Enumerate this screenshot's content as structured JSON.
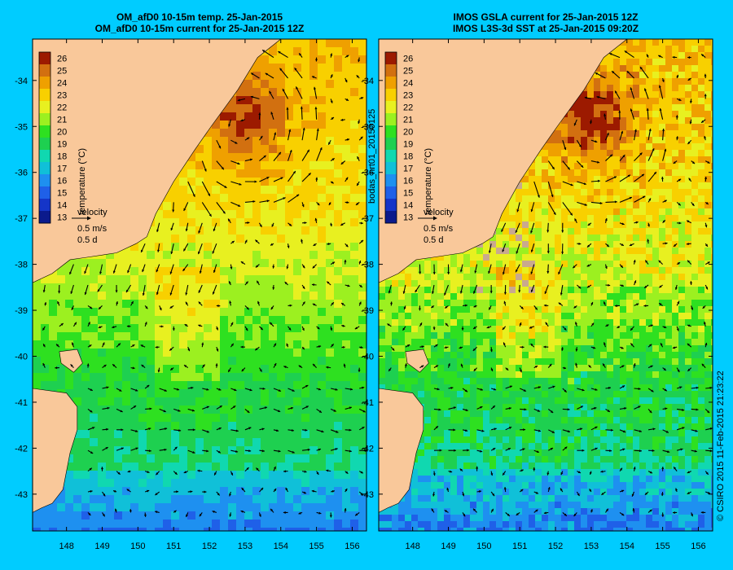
{
  "colors": {
    "background": "#00CCFF",
    "land": "#F9C89A",
    "arrow": "#000000",
    "cloud": "#C9A98E"
  },
  "icons": [
    "arrow-icon"
  ],
  "left_panel": {
    "title_line1": "OM_afD0 10-15m temp. 25-Jan-2015",
    "title_line2": "OM_afD0 10-15m current for 25-Jan-2015 12Z",
    "vertical_label": "bodas_nrt01_20150125"
  },
  "right_panel": {
    "title_line1": "IMOS GSLA current for 25-Jan-2015 12Z",
    "title_line2": "IMOS L3S-3d SST at 25-Jan-2015 09:20Z"
  },
  "colorbar": {
    "label": "temperature (°C)",
    "ticks": [
      "26",
      "25",
      "24",
      "23",
      "22",
      "21",
      "20",
      "19",
      "18",
      "17",
      "16",
      "15",
      "14",
      "13"
    ]
  },
  "velocity_key": {
    "title": "velocity",
    "speed": "0.5 m/s",
    "duration": "0.5 d"
  },
  "axes": {
    "lat_ticks": [
      "-34",
      "-35",
      "-36",
      "-37",
      "-38",
      "-39",
      "-40",
      "-41",
      "-42",
      "-43"
    ],
    "lon_ticks": [
      "148",
      "149",
      "150",
      "151",
      "152",
      "153",
      "154",
      "155",
      "156"
    ]
  },
  "footer_right": "© CSIRO 2015   11-Feb-2015 21:23:22"
}
